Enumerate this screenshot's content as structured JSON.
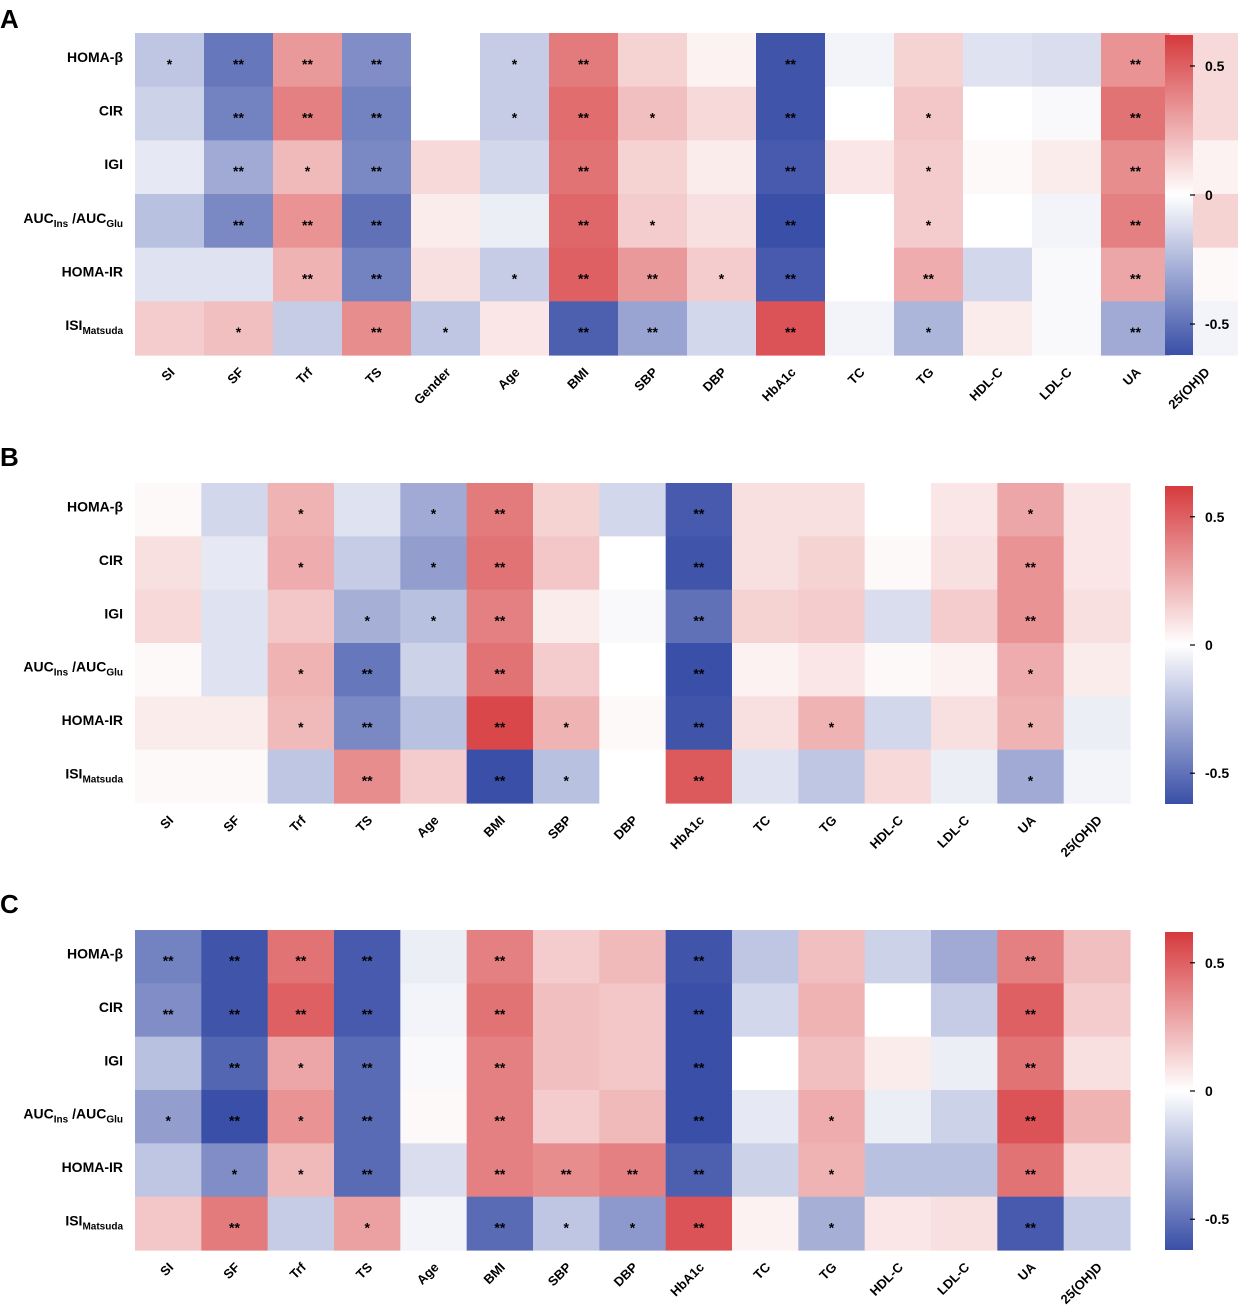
{
  "colors": {
    "negative": "#3a4fa7",
    "neutral": "#ffffff",
    "positive": "#d63a3d"
  },
  "colorbar": {
    "min": -0.62,
    "max": 0.62,
    "ticks": [
      0.5,
      0,
      -0.5
    ],
    "tick_labels": [
      "0.5",
      "0",
      "-0.5"
    ]
  },
  "chart_data": [
    {
      "type": "heatmap",
      "panel": "A",
      "title": "",
      "rows": [
        {
          "main": "HOMA-β",
          "sub": ""
        },
        {
          "main": "CIR",
          "sub": ""
        },
        {
          "main": "IGI",
          "sub": ""
        },
        {
          "main": "AUC",
          "sub": "Ins",
          "main2": " /AUC",
          "sub2": "Glu"
        },
        {
          "main": "HOMA-IR",
          "sub": ""
        },
        {
          "main": "ISI",
          "sub": "Matsuda"
        }
      ],
      "columns": [
        "SI",
        "SF",
        "Trf",
        "TS",
        "Gender",
        "Age",
        "BMI",
        "SBP",
        "DBP",
        "HbA1c",
        "TC",
        "TG",
        "HDL-C",
        "LDL-C",
        "UA",
        "25(OH)D"
      ],
      "values": [
        [
          -0.2,
          -0.48,
          0.32,
          -0.4,
          0.0,
          -0.18,
          0.42,
          0.14,
          0.04,
          -0.6,
          -0.04,
          0.14,
          -0.1,
          -0.12,
          0.34,
          0.12
        ],
        [
          -0.16,
          -0.44,
          0.4,
          -0.44,
          0.0,
          -0.18,
          0.46,
          0.2,
          0.12,
          -0.6,
          0.0,
          0.18,
          0.0,
          -0.02,
          0.44,
          0.12
        ],
        [
          -0.08,
          -0.3,
          0.22,
          -0.42,
          0.12,
          -0.14,
          0.44,
          0.14,
          0.06,
          -0.58,
          0.08,
          0.16,
          0.02,
          0.06,
          0.36,
          0.04
        ],
        [
          -0.22,
          -0.42,
          0.34,
          -0.5,
          0.06,
          -0.06,
          0.48,
          0.16,
          0.1,
          -0.62,
          0.0,
          0.16,
          0.0,
          -0.04,
          0.4,
          0.14
        ],
        [
          -0.1,
          -0.1,
          0.24,
          -0.44,
          0.1,
          -0.18,
          0.5,
          0.32,
          0.16,
          -0.58,
          0.0,
          0.26,
          -0.14,
          -0.02,
          0.28,
          0.02
        ],
        [
          0.16,
          0.2,
          -0.18,
          0.36,
          -0.2,
          0.08,
          -0.56,
          -0.32,
          -0.14,
          0.54,
          -0.04,
          -0.26,
          0.06,
          -0.02,
          -0.3,
          -0.04
        ]
      ],
      "significance": [
        [
          "*",
          "**",
          "**",
          "**",
          "",
          "*",
          "**",
          "",
          "",
          "**",
          "",
          "",
          "",
          "",
          "**",
          ""
        ],
        [
          "",
          "**",
          "**",
          "**",
          "",
          "*",
          "**",
          "*",
          "",
          "**",
          "",
          "*",
          "",
          "",
          "**",
          ""
        ],
        [
          "",
          "**",
          "*",
          "**",
          "",
          "",
          "**",
          "",
          "",
          "**",
          "",
          "*",
          "",
          "",
          "**",
          ""
        ],
        [
          "",
          "**",
          "**",
          "**",
          "",
          "",
          "**",
          "*",
          "",
          "**",
          "",
          "*",
          "",
          "",
          "**",
          ""
        ],
        [
          "",
          "",
          "**",
          "**",
          "",
          "*",
          "**",
          "**",
          "*",
          "**",
          "",
          "**",
          "",
          "",
          "**",
          ""
        ],
        [
          "",
          "*",
          "",
          "**",
          "*",
          "",
          "**",
          "**",
          "",
          "**",
          "",
          "*",
          "",
          "",
          "**",
          ""
        ]
      ]
    },
    {
      "type": "heatmap",
      "panel": "B",
      "title": "",
      "rows": [
        {
          "main": "HOMA-β",
          "sub": ""
        },
        {
          "main": "CIR",
          "sub": ""
        },
        {
          "main": "IGI",
          "sub": ""
        },
        {
          "main": "AUC",
          "sub": "Ins",
          "main2": " /AUC",
          "sub2": "Glu"
        },
        {
          "main": "HOMA-IR",
          "sub": ""
        },
        {
          "main": "ISI",
          "sub": "Matsuda"
        }
      ],
      "columns": [
        "SI",
        "SF",
        "Trf",
        "TS",
        "Age",
        "BMI",
        "SBP",
        "DBP",
        "HbA1c",
        "TC",
        "TG",
        "HDL-C",
        "LDL-C",
        "UA",
        "25(OH)D"
      ],
      "values": [
        [
          0.02,
          -0.14,
          0.24,
          -0.1,
          -0.3,
          0.42,
          0.14,
          -0.14,
          -0.58,
          0.1,
          0.1,
          0.0,
          0.08,
          0.28,
          0.08
        ],
        [
          0.1,
          -0.08,
          0.26,
          -0.18,
          -0.34,
          0.44,
          0.18,
          0.0,
          -0.6,
          0.1,
          0.14,
          0.02,
          0.1,
          0.34,
          0.08
        ],
        [
          0.12,
          -0.1,
          0.18,
          -0.28,
          -0.22,
          0.4,
          0.06,
          -0.02,
          -0.5,
          0.14,
          0.16,
          -0.12,
          0.16,
          0.34,
          0.1
        ],
        [
          0.02,
          -0.1,
          0.24,
          -0.48,
          -0.16,
          0.44,
          0.16,
          0.0,
          -0.62,
          0.04,
          0.08,
          0.02,
          0.04,
          0.26,
          0.06
        ],
        [
          0.06,
          0.06,
          0.22,
          -0.42,
          -0.22,
          0.58,
          0.24,
          0.02,
          -0.6,
          0.1,
          0.24,
          -0.14,
          0.1,
          0.24,
          -0.06
        ],
        [
          0.02,
          0.02,
          -0.2,
          0.36,
          0.16,
          -0.62,
          -0.22,
          0.0,
          0.52,
          -0.1,
          -0.2,
          0.12,
          -0.06,
          -0.3,
          -0.04
        ]
      ],
      "significance": [
        [
          "",
          "",
          "*",
          "",
          "*",
          "**",
          "",
          "",
          "**",
          "",
          "",
          "",
          "",
          "*",
          ""
        ],
        [
          "",
          "",
          "*",
          "",
          "*",
          "**",
          "",
          "",
          "**",
          "",
          "",
          "",
          "",
          "**",
          ""
        ],
        [
          "",
          "",
          "",
          "*",
          "*",
          "**",
          "",
          "",
          "**",
          "",
          "",
          "",
          "",
          "**",
          ""
        ],
        [
          "",
          "",
          "*",
          "**",
          "",
          "**",
          "",
          "",
          "**",
          "",
          "",
          "",
          "",
          "*",
          ""
        ],
        [
          "",
          "",
          "*",
          "**",
          "",
          "**",
          "*",
          "",
          "**",
          "",
          "*",
          "",
          "",
          "*",
          ""
        ],
        [
          "",
          "",
          "",
          "**",
          "",
          "**",
          "*",
          "",
          "**",
          "",
          "",
          "",
          "",
          "*",
          ""
        ]
      ]
    },
    {
      "type": "heatmap",
      "panel": "C",
      "title": "",
      "rows": [
        {
          "main": "HOMA-β",
          "sub": ""
        },
        {
          "main": "CIR",
          "sub": ""
        },
        {
          "main": "IGI",
          "sub": ""
        },
        {
          "main": "AUC",
          "sub": "Ins",
          "main2": " /AUC",
          "sub2": "Glu"
        },
        {
          "main": "HOMA-IR",
          "sub": ""
        },
        {
          "main": "ISI",
          "sub": "Matsuda"
        }
      ],
      "columns": [
        "SI",
        "SF",
        "Trf",
        "TS",
        "Age",
        "BMI",
        "SBP",
        "DBP",
        "HbA1c",
        "TC",
        "TG",
        "HDL-C",
        "LDL-C",
        "UA",
        "25(OH)D"
      ],
      "values": [
        [
          -0.44,
          -0.6,
          0.44,
          -0.58,
          -0.06,
          0.4,
          0.16,
          0.22,
          -0.6,
          -0.2,
          0.2,
          -0.16,
          -0.3,
          0.4,
          0.2
        ],
        [
          -0.4,
          -0.6,
          0.5,
          -0.58,
          -0.04,
          0.44,
          0.2,
          0.18,
          -0.62,
          -0.14,
          0.24,
          0.0,
          -0.18,
          0.5,
          0.16
        ],
        [
          -0.22,
          -0.54,
          0.28,
          -0.52,
          -0.02,
          0.4,
          0.2,
          0.18,
          -0.62,
          0.0,
          0.2,
          0.06,
          -0.06,
          0.44,
          0.1
        ],
        [
          -0.34,
          -0.62,
          0.34,
          -0.52,
          0.02,
          0.4,
          0.16,
          0.22,
          -0.62,
          -0.08,
          0.26,
          -0.06,
          -0.16,
          0.54,
          0.24
        ],
        [
          -0.2,
          -0.4,
          0.22,
          -0.52,
          -0.12,
          0.4,
          0.36,
          0.4,
          -0.56,
          -0.16,
          0.24,
          -0.22,
          -0.22,
          0.44,
          0.12
        ],
        [
          0.18,
          0.42,
          -0.18,
          0.3,
          -0.04,
          -0.52,
          -0.2,
          -0.36,
          0.54,
          0.04,
          -0.28,
          0.08,
          0.1,
          -0.58,
          -0.18
        ]
      ],
      "significance": [
        [
          "**",
          "**",
          "**",
          "**",
          "",
          "**",
          "",
          "",
          "**",
          "",
          "",
          "",
          "",
          "**",
          ""
        ],
        [
          "**",
          "**",
          "**",
          "**",
          "",
          "**",
          "",
          "",
          "**",
          "",
          "",
          "",
          "",
          "**",
          ""
        ],
        [
          "",
          "**",
          "*",
          "**",
          "",
          "**",
          "",
          "",
          "**",
          "",
          "",
          "",
          "",
          "**",
          ""
        ],
        [
          "*",
          "**",
          "*",
          "**",
          "",
          "**",
          "",
          "",
          "**",
          "",
          "*",
          "",
          "",
          "**",
          ""
        ],
        [
          "",
          "*",
          "*",
          "**",
          "",
          "**",
          "**",
          "**",
          "**",
          "",
          "*",
          "",
          "",
          "**",
          ""
        ],
        [
          "",
          "**",
          "",
          "*",
          "",
          "**",
          "*",
          "*",
          "**",
          "",
          "*",
          "",
          "",
          "**",
          ""
        ]
      ]
    }
  ]
}
